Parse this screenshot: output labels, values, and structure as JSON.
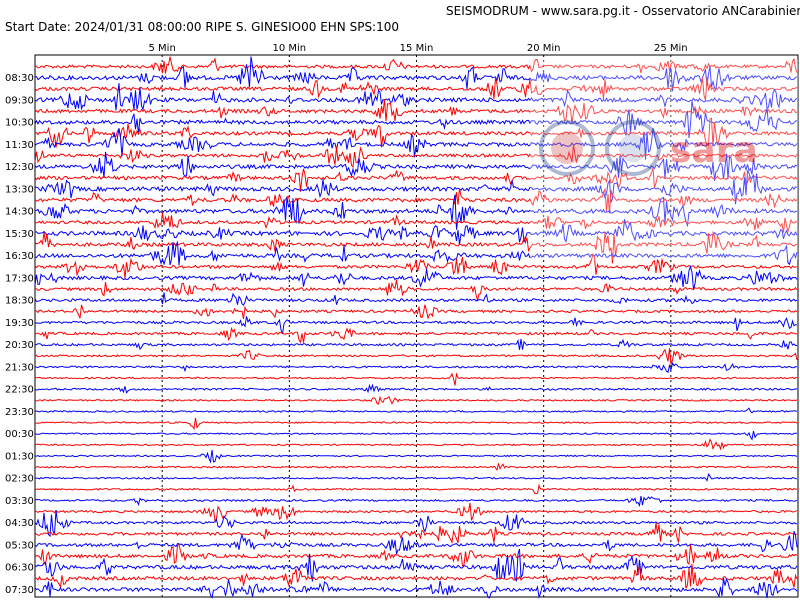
{
  "header": {
    "station_line": "SEISMODRUM - www.sara.pg.it - Osservatorio ANCarabinieri",
    "info_line": "Start Date: 2024/01/31 08:00:00 RIPE S. GINESIO00 EHN  SPS:100"
  },
  "chart_data": {
    "type": "line",
    "title": "SEISMODRUM - www.sara.pg.it - Osservatorio ANCarabinieri",
    "subtitle": "Start Date: 2024/01/31 08:00:00 RIPE S. GINESIO00 EHN  SPS:100",
    "x_unit": "min",
    "xlim": [
      0,
      30
    ],
    "x_ticks": [
      {
        "value": 5,
        "label": "5 Min"
      },
      {
        "value": 10,
        "label": "10 Min"
      },
      {
        "value": 15,
        "label": "15 Min"
      },
      {
        "value": 20,
        "label": "20 Min"
      },
      {
        "value": 25,
        "label": "25 Min"
      }
    ],
    "row_count": 48,
    "row_minutes": 30,
    "row_labels": [
      "08:30",
      "09:30",
      "10:30",
      "11:30",
      "12:30",
      "13:30",
      "14:30",
      "15:30",
      "16:30",
      "17:30",
      "18:30",
      "19:30",
      "20:30",
      "21:30",
      "22:30",
      "23:30",
      "00:30",
      "01:30",
      "02:30",
      "03:30",
      "04:30",
      "05:30",
      "06:30",
      "07:30"
    ],
    "colors": [
      "#ff0000",
      "#0000ff"
    ],
    "grid": "dotted vertical lines every 5 min",
    "activity": [
      0.6,
      0.9,
      0.7,
      0.9,
      0.7,
      0.8,
      0.7,
      0.8,
      0.6,
      0.8,
      0.7,
      0.9,
      0.8,
      0.9,
      0.6,
      0.9,
      0.7,
      0.8,
      0.6,
      0.7,
      0.5,
      0.5,
      0.4,
      0.4,
      0.4,
      0.3,
      0.2,
      0.2,
      0.1,
      0.2,
      0.1,
      0.1,
      0.08,
      0.05,
      0.05,
      0.05,
      0.1,
      0.1,
      0.15,
      0.2,
      0.3,
      0.4,
      0.5,
      0.6,
      0.7,
      0.8,
      0.7,
      0.8
    ]
  },
  "watermark": {
    "text": "sara"
  }
}
